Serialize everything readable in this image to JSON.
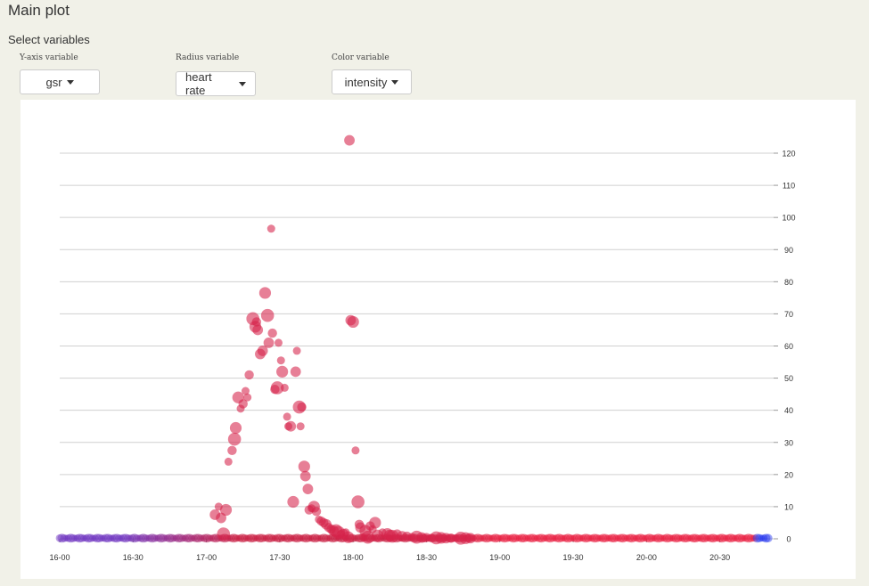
{
  "header": {
    "title": "Main plot"
  },
  "controls": {
    "section_label": "Select variables",
    "y_axis": {
      "label": "Y-axis variable",
      "value": "gsr"
    },
    "radius": {
      "label": "Radius variable",
      "value": "heart rate"
    },
    "color": {
      "label": "Color variable",
      "value": "intensity"
    }
  },
  "colors": {
    "background": "#f1f1e8",
    "panel": "#ffffff",
    "grid": "#d0d0d0",
    "low_intensity": "#6a2fbf",
    "high_intensity": "#e8173a",
    "end_intensity": "#2233ee"
  },
  "chart_data": {
    "type": "scatter",
    "x_ticks": [
      "16-00",
      "16-30",
      "17-00",
      "17-30",
      "18-00",
      "18-30",
      "19-00",
      "19-30",
      "20-00",
      "20-30"
    ],
    "x_tick_minutes": [
      0,
      30,
      60,
      90,
      120,
      150,
      180,
      210,
      240,
      270
    ],
    "y_ticks": [
      0,
      10,
      20,
      30,
      40,
      50,
      60,
      70,
      80,
      90,
      100,
      110,
      120
    ],
    "ylim": [
      0,
      120
    ],
    "xlim_minutes": [
      0,
      292
    ],
    "grid": true,
    "y_axis_side": "right",
    "point_color_scale": "intensity: purple (low) → crimson → red (high) → blue (end)",
    "points": [
      [
        63.5,
        7.5,
        0.58
      ],
      [
        65,
        10,
        0.58
      ],
      [
        66,
        6.5,
        0.58
      ],
      [
        68,
        9,
        0.58
      ],
      [
        67,
        1.5,
        0.58
      ],
      [
        69,
        24,
        0.58
      ],
      [
        70.5,
        27.5,
        0.58
      ],
      [
        71.5,
        31,
        0.58
      ],
      [
        72,
        34.5,
        0.58
      ],
      [
        73,
        44,
        0.58
      ],
      [
        74,
        40.5,
        0.58
      ],
      [
        75,
        42,
        0.58
      ],
      [
        76,
        46,
        0.58
      ],
      [
        76.8,
        44,
        0.58
      ],
      [
        77.5,
        51,
        0.58
      ],
      [
        79,
        68.5,
        0.58
      ],
      [
        80,
        66,
        0.58
      ],
      [
        80.5,
        67.5,
        0.58
      ],
      [
        81,
        65,
        0.58
      ],
      [
        82,
        57.5,
        0.58
      ],
      [
        83,
        58.5,
        0.58
      ],
      [
        84,
        76.5,
        0.58
      ],
      [
        85,
        69.5,
        0.58
      ],
      [
        85.5,
        61,
        0.58
      ],
      [
        86.5,
        96.5,
        0.58
      ],
      [
        87,
        64,
        0.58
      ],
      [
        88,
        46.5,
        0.58
      ],
      [
        89,
        47,
        0.58
      ],
      [
        89.5,
        61,
        0.58
      ],
      [
        90.5,
        55.5,
        0.58
      ],
      [
        91,
        52,
        0.58
      ],
      [
        92,
        47,
        0.58
      ],
      [
        93,
        38,
        0.58
      ],
      [
        93.5,
        35,
        0.58
      ],
      [
        94.5,
        35,
        0.58
      ],
      [
        95.5,
        11.5,
        0.58
      ],
      [
        96.5,
        52,
        0.58
      ],
      [
        97,
        58.5,
        0.58
      ],
      [
        98,
        41,
        0.58
      ],
      [
        98.5,
        35,
        0.58
      ],
      [
        99,
        41,
        0.58
      ],
      [
        100,
        22.5,
        0.58
      ],
      [
        100.5,
        19.5,
        0.58
      ],
      [
        101.5,
        15.5,
        0.58
      ],
      [
        102,
        9,
        0.58
      ],
      [
        103,
        9.5,
        0.58
      ],
      [
        104,
        10,
        0.58
      ],
      [
        105,
        8.5,
        0.58
      ],
      [
        106,
        6,
        0.58
      ],
      [
        107,
        5.5,
        0.58
      ],
      [
        108,
        5,
        0.58
      ],
      [
        109,
        4.5,
        0.58
      ],
      [
        110,
        3.5,
        0.58
      ],
      [
        111,
        3,
        0.58
      ],
      [
        112,
        2.5,
        0.58
      ],
      [
        113,
        2.5,
        0.58
      ],
      [
        114,
        2,
        0.58
      ],
      [
        115,
        1.5,
        0.58
      ],
      [
        116,
        1.5,
        0.58
      ],
      [
        117,
        2,
        0.58
      ],
      [
        118,
        0.5,
        0.58
      ],
      [
        118.5,
        124,
        0.58
      ],
      [
        119,
        68,
        0.58
      ],
      [
        120,
        67.5,
        0.58
      ],
      [
        121,
        27.5,
        0.58
      ],
      [
        122,
        11.5,
        0.58
      ],
      [
        122.5,
        4.5,
        0.58
      ],
      [
        123,
        3.5,
        0.58
      ],
      [
        124,
        0.5,
        0.58
      ],
      [
        125,
        2.5,
        0.58
      ],
      [
        126,
        0.5,
        0.58
      ],
      [
        127,
        4,
        0.58
      ],
      [
        128,
        3,
        0.58
      ],
      [
        129,
        5,
        0.58
      ],
      [
        130,
        1,
        0.58
      ],
      [
        132,
        2,
        0.58
      ],
      [
        134,
        1.5,
        0.58
      ],
      [
        135,
        1,
        0.58
      ],
      [
        136,
        0.8,
        0.58
      ],
      [
        138,
        1.5,
        0.58
      ],
      [
        140,
        0.8,
        0.58
      ],
      [
        142,
        0.8,
        0.58
      ],
      [
        144,
        0.6,
        0.58
      ],
      [
        146,
        0.5,
        0.58
      ],
      [
        148,
        0.4,
        0.58
      ],
      [
        150,
        0.4,
        0.58
      ],
      [
        152,
        0.3,
        0.58
      ],
      [
        154,
        0.3,
        0.58
      ],
      [
        156,
        0.3,
        0.58
      ],
      [
        158,
        0.2,
        0.58
      ],
      [
        160,
        0.2,
        0.58
      ],
      [
        162,
        0.2,
        0.58
      ],
      [
        164,
        0.2,
        0.58
      ],
      [
        166,
        0.2,
        0.58
      ],
      [
        168,
        0.2,
        0.58
      ]
    ]
  }
}
